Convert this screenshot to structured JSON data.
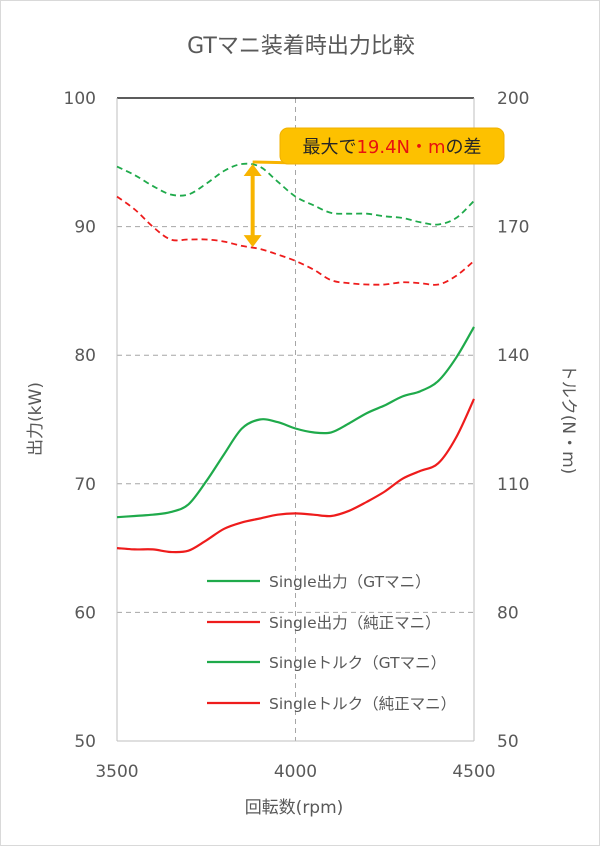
{
  "chart_data": {
    "type": "line",
    "title": "GTマニ装着時出力比較",
    "xlabel": "回転数(rpm)",
    "ylabel_left": "出力(kW)",
    "ylabel_right": "トルク(N・m)",
    "xlim": [
      3500,
      4500
    ],
    "ylim_left": [
      50,
      100
    ],
    "ylim_right": [
      50,
      200
    ],
    "x_ticks": [
      "3500",
      "4000",
      "4500"
    ],
    "y_ticks_left": [
      "50",
      "60",
      "70",
      "80",
      "90",
      "100"
    ],
    "y_ticks_right": [
      "50",
      "80",
      "110",
      "140",
      "170",
      "200"
    ],
    "grid": "dashed",
    "legend_position": "bottom-right",
    "annotation": {
      "prefix": "最大で",
      "highlight": "19.4N・m",
      "suffix": "の差",
      "x": 3880,
      "y_from": 184.6,
      "y_to": 165.2
    },
    "series": [
      {
        "name": "Single出力（GTマニ）",
        "axis": "left",
        "style": "solid",
        "color": "#1faa4b",
        "x": [
          3500,
          3550,
          3600,
          3650,
          3700,
          3750,
          3800,
          3850,
          3900,
          3950,
          4000,
          4050,
          4100,
          4150,
          4200,
          4250,
          4300,
          4350,
          4400,
          4450,
          4500
        ],
        "y": [
          67.4,
          67.5,
          67.6,
          67.8,
          68.4,
          70.2,
          72.3,
          74.3,
          75.0,
          74.8,
          74.3,
          74.0,
          74.0,
          74.7,
          75.5,
          76.1,
          76.8,
          77.2,
          78.0,
          79.8,
          82.2
        ]
      },
      {
        "name": "Single出力（純正マニ）",
        "axis": "left",
        "style": "solid",
        "color": "#ee1c1c",
        "x": [
          3500,
          3550,
          3600,
          3650,
          3700,
          3750,
          3800,
          3850,
          3900,
          3950,
          4000,
          4050,
          4100,
          4150,
          4200,
          4250,
          4300,
          4350,
          4400,
          4450,
          4500
        ],
        "y": [
          65.0,
          64.9,
          64.9,
          64.7,
          64.8,
          65.6,
          66.5,
          67.0,
          67.3,
          67.6,
          67.7,
          67.6,
          67.5,
          67.9,
          68.6,
          69.4,
          70.4,
          71.0,
          71.6,
          73.6,
          76.6
        ]
      },
      {
        "name": "Singleトルク（GTマニ）",
        "axis": "right",
        "style": "dashed",
        "color": "#1faa4b",
        "x": [
          3500,
          3550,
          3600,
          3650,
          3700,
          3750,
          3800,
          3850,
          3900,
          3950,
          4000,
          4050,
          4100,
          4150,
          4200,
          4250,
          4300,
          4350,
          4400,
          4450,
          4500
        ],
        "y": [
          184.0,
          182.0,
          179.5,
          177.5,
          177.5,
          180.0,
          183.0,
          184.6,
          184.0,
          180.5,
          177.0,
          175.0,
          173.2,
          173.0,
          173.0,
          172.4,
          172.0,
          171.0,
          170.5,
          172.0,
          176.0
        ]
      },
      {
        "name": "Singleトルク（純正マニ）",
        "axis": "right",
        "style": "dashed",
        "color": "#ee1c1c",
        "x": [
          3500,
          3550,
          3600,
          3650,
          3700,
          3750,
          3800,
          3850,
          3900,
          3950,
          4000,
          4050,
          4100,
          4150,
          4200,
          4250,
          4300,
          4350,
          4400,
          4450,
          4500
        ],
        "y": [
          177.0,
          174.0,
          170.0,
          167.0,
          167.0,
          167.0,
          166.5,
          165.5,
          164.8,
          163.5,
          162.0,
          160.0,
          157.5,
          156.8,
          156.5,
          156.5,
          157.0,
          156.8,
          156.5,
          158.5,
          162.0
        ]
      }
    ]
  }
}
